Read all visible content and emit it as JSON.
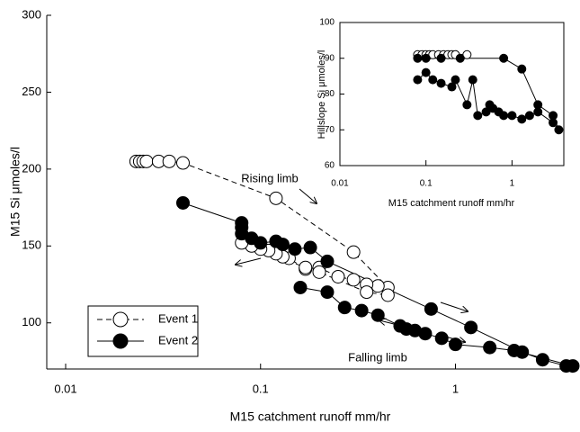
{
  "chart_data": [
    {
      "type": "scatter",
      "xlabel": "M15 catchment runoff mm/hr",
      "ylabel": "M15 Si   μmoles/l",
      "xscale": "log",
      "xlim": [
        0.008,
        4
      ],
      "xticks": [
        0.01,
        0.1,
        1
      ],
      "ylim": [
        70,
        300
      ],
      "yticks": [
        100,
        150,
        200,
        250,
        300
      ],
      "legend": "lower left",
      "annotations": [
        "Rising limb",
        "Falling limb"
      ],
      "series": [
        {
          "name": "Event 1",
          "color": "#000000",
          "marker": "open",
          "line_style": "dashed",
          "x": [
            0.023,
            0.024,
            0.025,
            0.026,
            0.03,
            0.034,
            0.04,
            0.12,
            0.3,
            0.45,
            0.4,
            0.35,
            0.3,
            0.25,
            0.2,
            0.17,
            0.14,
            0.13,
            0.12,
            0.11,
            0.1,
            0.09,
            0.08,
            0.17,
            0.2,
            0.35,
            0.45
          ],
          "values": [
            205,
            205,
            205,
            205,
            205,
            205,
            204,
            181,
            146,
            123,
            124,
            125,
            128,
            130,
            136,
            135,
            142,
            143,
            145,
            147,
            148,
            150,
            152,
            136,
            133,
            120,
            118
          ]
        },
        {
          "name": "Event 2",
          "color": "#000000",
          "marker": "filled",
          "line_style": "solid",
          "x": [
            0.04,
            0.08,
            0.08,
            0.08,
            0.09,
            0.1,
            0.12,
            0.13,
            0.15,
            0.18,
            0.22,
            0.75,
            1.2,
            2.2,
            2.8,
            3.7,
            4.0,
            2.0,
            1.5,
            1.0,
            0.85,
            0.7,
            0.62,
            0.56,
            0.52,
            0.4,
            0.33,
            0.27,
            0.22,
            0.16
          ],
          "values": [
            178,
            165,
            162,
            158,
            155,
            152,
            153,
            151,
            148,
            149,
            140,
            109,
            97,
            81,
            76,
            72,
            72,
            82,
            84,
            86,
            90,
            93,
            95,
            96,
            98,
            105,
            108,
            110,
            120,
            123
          ]
        }
      ]
    },
    {
      "type": "scatter",
      "xlabel": "M15 catchment runoff mm/hr",
      "ylabel": "Hillslope Si   μmoles/l",
      "xscale": "log",
      "xlim": [
        0.01,
        4
      ],
      "xticks": [
        0.01,
        0.1,
        1
      ],
      "ylim": [
        60,
        100
      ],
      "yticks": [
        60,
        70,
        80,
        90,
        100
      ],
      "series": [
        {
          "color": "#000000",
          "marker": "open",
          "line_style": "solid",
          "x": [
            0.08,
            0.09,
            0.1,
            0.11,
            0.12,
            0.14,
            0.16,
            0.18,
            0.2,
            0.22,
            0.3
          ],
          "values": [
            91,
            91,
            91,
            91,
            91,
            91,
            91,
            91,
            91,
            91,
            91
          ]
        },
        {
          "color": "#000000",
          "marker": "filled",
          "line_style": "solid",
          "x": [
            0.08,
            0.1,
            0.15,
            0.25,
            0.8,
            1.3,
            2.0,
            3.0,
            3.5,
            3.0,
            2.0,
            1.6,
            1.3,
            1.0,
            0.8,
            0.7,
            0.6,
            0.55,
            0.5,
            0.4,
            0.35,
            0.3,
            0.22,
            0.2,
            0.15,
            0.12,
            0.1,
            0.08
          ],
          "values": [
            90,
            90,
            90,
            90,
            90,
            87,
            77,
            74,
            70,
            72,
            75,
            74,
            73,
            74,
            74,
            75,
            76,
            77,
            75,
            74,
            84,
            77,
            84,
            82,
            83,
            84,
            86,
            84
          ]
        }
      ]
    }
  ]
}
